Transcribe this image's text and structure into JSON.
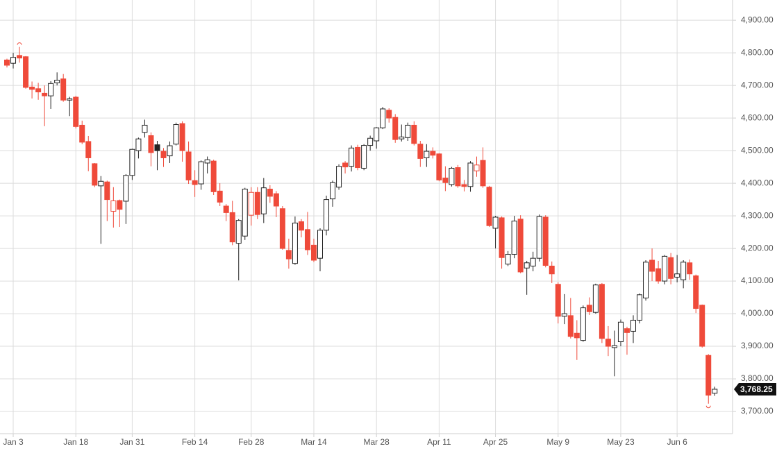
{
  "chart_data": {
    "type": "candlestick",
    "categories": [
      null,
      "Jan 3",
      null,
      null,
      null,
      null,
      null,
      null,
      null,
      null,
      null,
      "Jan 18",
      null,
      null,
      null,
      null,
      null,
      null,
      null,
      null,
      "Jan 31",
      null,
      null,
      null,
      null,
      null,
      null,
      null,
      null,
      null,
      "Feb 14",
      null,
      null,
      null,
      null,
      null,
      null,
      null,
      null,
      "Feb 28",
      null,
      null,
      null,
      null,
      null,
      null,
      null,
      null,
      null,
      "Mar 14",
      null,
      null,
      null,
      null,
      null,
      null,
      null,
      null,
      null,
      "Mar 28",
      null,
      null,
      null,
      null,
      null,
      null,
      null,
      null,
      null,
      "Apr 11",
      null,
      null,
      null,
      null,
      null,
      null,
      null,
      null,
      "Apr 25",
      null,
      null,
      null,
      null,
      null,
      null,
      null,
      null,
      null,
      "May 9",
      null,
      null,
      null,
      null,
      null,
      null,
      null,
      null,
      null,
      "May 23",
      null,
      null,
      null,
      null,
      null,
      null,
      null,
      null,
      "Jun 6",
      null,
      null,
      null,
      null,
      null,
      null
    ],
    "open": [
      4778,
      4768,
      4792,
      4788,
      4695,
      4690,
      4676,
      4668,
      4708,
      4720,
      4655,
      4664,
      4578,
      4528,
      4460,
      4392,
      4404,
      4314,
      4347,
      4345,
      4424,
      4500,
      4556,
      4546,
      4518,
      4498,
      4484,
      4520,
      4583,
      4496,
      4408,
      4398,
      4462,
      4468,
      4376,
      4330,
      4310,
      4216,
      4238,
      4302,
      4372,
      4306,
      4382,
      4368,
      4322,
      4194,
      4154,
      4282,
      4258,
      4210,
      4170,
      4256,
      4352,
      4388,
      4462,
      4452,
      4510,
      4446,
      4516,
      4530,
      4570,
      4624,
      4602,
      4536,
      4540,
      4578,
      4520,
      4478,
      4498,
      4490,
      4416,
      4396,
      4448,
      4396,
      4390,
      4438,
      4470,
      4388,
      4262,
      4294,
      4152,
      4182,
      4290,
      4140,
      4146,
      4170,
      4296,
      4146,
      4090,
      3992,
      3994,
      3940,
      3918,
      4026,
      4004,
      4090,
      3922,
      3896,
      3914,
      3954,
      3946,
      3980,
      4048,
      4164,
      4138,
      4100,
      4172,
      4112,
      4104,
      4156,
      4116,
      4026,
      3872,
      3756
    ],
    "high": [
      4782,
      4800,
      4818,
      4790,
      4712,
      4708,
      4700,
      4713,
      4740,
      4735,
      4665,
      4668,
      4592,
      4545,
      4462,
      4422,
      4408,
      4388,
      4350,
      4428,
      4506,
      4540,
      4595,
      4556,
      4530,
      4508,
      4528,
      4586,
      4590,
      4528,
      4440,
      4470,
      4482,
      4472,
      4400,
      4336,
      4346,
      4290,
      4386,
      4388,
      4388,
      4416,
      4394,
      4376,
      4330,
      4230,
      4298,
      4290,
      4312,
      4230,
      4262,
      4362,
      4408,
      4458,
      4468,
      4516,
      4518,
      4520,
      4546,
      4572,
      4634,
      4630,
      4612,
      4580,
      4586,
      4590,
      4530,
      4520,
      4510,
      4492,
      4452,
      4450,
      4456,
      4410,
      4468,
      4482,
      4510,
      4392,
      4300,
      4298,
      4192,
      4300,
      4302,
      4162,
      4190,
      4304,
      4302,
      4160,
      4096,
      4060,
      4048,
      3980,
      4025,
      4050,
      4092,
      4094,
      3962,
      3948,
      3982,
      3960,
      3995,
      4062,
      4164,
      4200,
      4162,
      4180,
      4186,
      4180,
      4164,
      4166,
      4120,
      4028,
      3876,
      3776
    ],
    "low": [
      4755,
      4752,
      4770,
      4690,
      4660,
      4656,
      4575,
      4628,
      4700,
      4650,
      4606,
      4568,
      4520,
      4437,
      4388,
      4214,
      4284,
      4264,
      4266,
      4275,
      4410,
      4476,
      4540,
      4452,
      4440,
      4450,
      4462,
      4516,
      4466,
      4398,
      4358,
      4380,
      4430,
      4364,
      4330,
      4284,
      4210,
      4102,
      4226,
      4270,
      4290,
      4278,
      4340,
      4296,
      4196,
      4138,
      4150,
      4234,
      4180,
      4158,
      4130,
      4240,
      4328,
      4380,
      4430,
      4436,
      4440,
      4440,
      4500,
      4506,
      4566,
      4586,
      4524,
      4528,
      4530,
      4516,
      4450,
      4450,
      4476,
      4406,
      4376,
      4390,
      4386,
      4375,
      4374,
      4420,
      4386,
      4266,
      4200,
      4138,
      4146,
      4170,
      4124,
      4058,
      4130,
      4160,
      4142,
      4094,
      3970,
      3968,
      3924,
      3858,
      3914,
      3996,
      4000,
      3910,
      3870,
      3808,
      3900,
      3874,
      3910,
      3970,
      4040,
      4100,
      4092,
      4090,
      4090,
      4096,
      4078,
      4104,
      4002,
      3896,
      3724,
      3748
    ],
    "close": [
      4762,
      4786,
      4784,
      4694,
      4688,
      4680,
      4668,
      4706,
      4716,
      4655,
      4659,
      4574,
      4526,
      4478,
      4394,
      4406,
      4350,
      4346,
      4320,
      4424,
      4504,
      4536,
      4578,
      4494,
      4500,
      4478,
      4515,
      4580,
      4500,
      4410,
      4396,
      4466,
      4472,
      4374,
      4342,
      4310,
      4220,
      4286,
      4382,
      4372,
      4304,
      4386,
      4360,
      4330,
      4200,
      4168,
      4278,
      4256,
      4196,
      4164,
      4256,
      4350,
      4402,
      4452,
      4450,
      4508,
      4448,
      4516,
      4538,
      4570,
      4628,
      4600,
      4534,
      4542,
      4578,
      4522,
      4476,
      4498,
      4486,
      4410,
      4402,
      4446,
      4392,
      4390,
      4462,
      4456,
      4392,
      4270,
      4296,
      4172,
      4182,
      4284,
      4128,
      4156,
      4170,
      4298,
      4148,
      4122,
      3992,
      4000,
      3930,
      3926,
      4018,
      4006,
      4088,
      3924,
      3900,
      3902,
      3974,
      3942,
      3980,
      4058,
      4158,
      4130,
      4100,
      4176,
      4108,
      4122,
      4158,
      4122,
      4016,
      3900,
      3750,
      3768.25
    ],
    "up_color": "#222222",
    "down_color": "#ef4a3a",
    "ylim": [
      3632,
      4962
    ],
    "yticks": [
      {
        "value": 3700,
        "label": "3,700.00"
      },
      {
        "value": 3800,
        "label": "3,800.00"
      },
      {
        "value": 3900,
        "label": "3,900.00"
      },
      {
        "value": 4000,
        "label": "4,000.00"
      },
      {
        "value": 4100,
        "label": "4,100.00"
      },
      {
        "value": 4200,
        "label": "4,200.00"
      },
      {
        "value": 4300,
        "label": "4,300.00"
      },
      {
        "value": 4400,
        "label": "4,400.00"
      },
      {
        "value": 4500,
        "label": "4,500.00"
      },
      {
        "value": 4600,
        "label": "4,600.00"
      },
      {
        "value": 4700,
        "label": "4,700.00"
      },
      {
        "value": 4800,
        "label": "4,800.00"
      },
      {
        "value": 4900,
        "label": "4,900.00"
      }
    ],
    "grid": true,
    "last_price": {
      "value": 3768.25,
      "label": "3,768.25"
    }
  }
}
